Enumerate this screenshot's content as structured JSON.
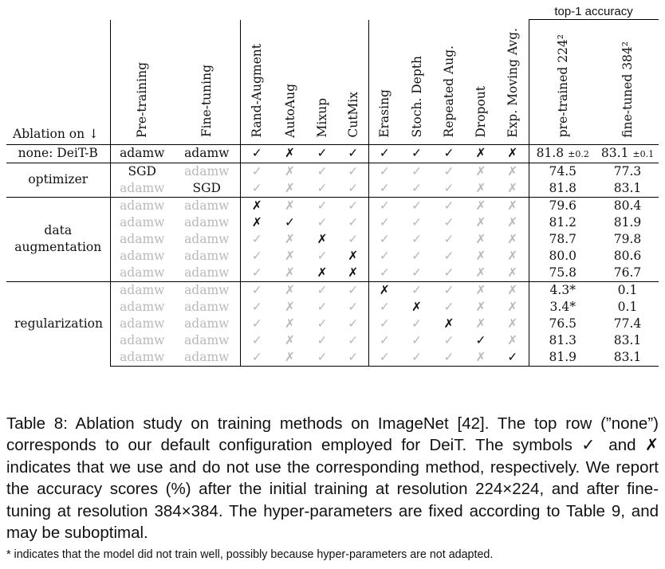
{
  "header": {
    "ablation_label": "Ablation on ↓",
    "top_group": "top-1 accuracy",
    "columns": [
      "Pre-training",
      "Fine-tuning",
      "Rand-Augment",
      "AutoAug",
      "Mixup",
      "CutMix",
      "Erasing",
      "Stoch. Depth",
      "Repeated Aug.",
      "Dropout",
      "Exp. Moving Avg.",
      "pre-trained 224²",
      "fine-tuned 384²"
    ]
  },
  "baseline": {
    "label": "none: DeiT-B",
    "pretrain": "adamw",
    "finetune": "adamw",
    "flags": [
      "✓",
      "✗",
      "✓",
      "✓",
      "✓",
      "✓",
      "✓",
      "✗",
      "✗"
    ],
    "acc224": "81.8",
    "acc224_pm": "±0.2",
    "acc384": "83.1",
    "acc384_pm": "±0.1"
  },
  "groups": [
    {
      "label": "optimizer",
      "rows": [
        {
          "pre": "SGD",
          "fine": "adamw",
          "pre_active": true,
          "fine_active": false,
          "flags": [
            "✓",
            "✗",
            "✓",
            "✓",
            "✓",
            "✓",
            "✓",
            "✗",
            "✗"
          ],
          "active": [
            false,
            false,
            false,
            false,
            false,
            false,
            false,
            false,
            false
          ],
          "acc224": "74.5",
          "acc384": "77.3"
        },
        {
          "pre": "adamw",
          "fine": "SGD",
          "pre_active": false,
          "fine_active": true,
          "flags": [
            "✓",
            "✗",
            "✓",
            "✓",
            "✓",
            "✓",
            "✓",
            "✗",
            "✗"
          ],
          "active": [
            false,
            false,
            false,
            false,
            false,
            false,
            false,
            false,
            false
          ],
          "acc224": "81.8",
          "acc384": "83.1"
        }
      ]
    },
    {
      "label": "data augmentation",
      "rows": [
        {
          "pre": "adamw",
          "fine": "adamw",
          "pre_active": false,
          "fine_active": false,
          "flags": [
            "✗",
            "✗",
            "✓",
            "✓",
            "✓",
            "✓",
            "✓",
            "✗",
            "✗"
          ],
          "active": [
            true,
            false,
            false,
            false,
            false,
            false,
            false,
            false,
            false
          ],
          "acc224": "79.6",
          "acc384": "80.4"
        },
        {
          "pre": "adamw",
          "fine": "adamw",
          "pre_active": false,
          "fine_active": false,
          "flags": [
            "✗",
            "✓",
            "✓",
            "✓",
            "✓",
            "✓",
            "✓",
            "✗",
            "✗"
          ],
          "active": [
            true,
            true,
            false,
            false,
            false,
            false,
            false,
            false,
            false
          ],
          "acc224": "81.2",
          "acc384": "81.9"
        },
        {
          "pre": "adamw",
          "fine": "adamw",
          "pre_active": false,
          "fine_active": false,
          "flags": [
            "✓",
            "✗",
            "✗",
            "✓",
            "✓",
            "✓",
            "✓",
            "✗",
            "✗"
          ],
          "active": [
            false,
            false,
            true,
            false,
            false,
            false,
            false,
            false,
            false
          ],
          "acc224": "78.7",
          "acc384": "79.8"
        },
        {
          "pre": "adamw",
          "fine": "adamw",
          "pre_active": false,
          "fine_active": false,
          "flags": [
            "✓",
            "✗",
            "✓",
            "✗",
            "✓",
            "✓",
            "✓",
            "✗",
            "✗"
          ],
          "active": [
            false,
            false,
            false,
            true,
            false,
            false,
            false,
            false,
            false
          ],
          "acc224": "80.0",
          "acc384": "80.6"
        },
        {
          "pre": "adamw",
          "fine": "adamw",
          "pre_active": false,
          "fine_active": false,
          "flags": [
            "✓",
            "✗",
            "✗",
            "✗",
            "✓",
            "✓",
            "✓",
            "✗",
            "✗"
          ],
          "active": [
            false,
            false,
            true,
            true,
            false,
            false,
            false,
            false,
            false
          ],
          "acc224": "75.8",
          "acc384": "76.7"
        }
      ]
    },
    {
      "label": "regularization",
      "rows": [
        {
          "pre": "adamw",
          "fine": "adamw",
          "pre_active": false,
          "fine_active": false,
          "flags": [
            "✓",
            "✗",
            "✓",
            "✓",
            "✗",
            "✓",
            "✓",
            "✗",
            "✗"
          ],
          "active": [
            false,
            false,
            false,
            false,
            true,
            false,
            false,
            false,
            false
          ],
          "acc224": "4.3*",
          "acc384": "0.1"
        },
        {
          "pre": "adamw",
          "fine": "adamw",
          "pre_active": false,
          "fine_active": false,
          "flags": [
            "✓",
            "✗",
            "✓",
            "✓",
            "✓",
            "✗",
            "✓",
            "✗",
            "✗"
          ],
          "active": [
            false,
            false,
            false,
            false,
            false,
            true,
            false,
            false,
            false
          ],
          "acc224": "3.4*",
          "acc384": "0.1"
        },
        {
          "pre": "adamw",
          "fine": "adamw",
          "pre_active": false,
          "fine_active": false,
          "flags": [
            "✓",
            "✗",
            "✓",
            "✓",
            "✓",
            "✓",
            "✗",
            "✗",
            "✗"
          ],
          "active": [
            false,
            false,
            false,
            false,
            false,
            false,
            true,
            false,
            false
          ],
          "acc224": "76.5",
          "acc384": "77.4"
        },
        {
          "pre": "adamw",
          "fine": "adamw",
          "pre_active": false,
          "fine_active": false,
          "flags": [
            "✓",
            "✗",
            "✓",
            "✓",
            "✓",
            "✓",
            "✓",
            "✓",
            "✗"
          ],
          "active": [
            false,
            false,
            false,
            false,
            false,
            false,
            false,
            true,
            false
          ],
          "acc224": "81.3",
          "acc384": "83.1"
        },
        {
          "pre": "adamw",
          "fine": "adamw",
          "pre_active": false,
          "fine_active": false,
          "flags": [
            "✓",
            "✗",
            "✓",
            "✓",
            "✓",
            "✓",
            "✓",
            "✗",
            "✓"
          ],
          "active": [
            false,
            false,
            false,
            false,
            false,
            false,
            false,
            false,
            true
          ],
          "acc224": "81.9",
          "acc384": "83.1"
        }
      ]
    }
  ],
  "caption": "Table 8: Ablation study on training methods on ImageNet [42]. The top row (”none”) corresponds to our default configuration employed for DeiT. The symbols ✓ and ✗ indicates that we use and do not use the corresponding method, respectively. We report the accuracy scores (%) after the initial training at resolution 224×224, and after fine-tuning at resolution 384×384. The hyper-parameters are fixed according to Table 9, and may be suboptimal.",
  "footnote": "* indicates that the model did not train well, possibly because hyper-parameters are not adapted."
}
